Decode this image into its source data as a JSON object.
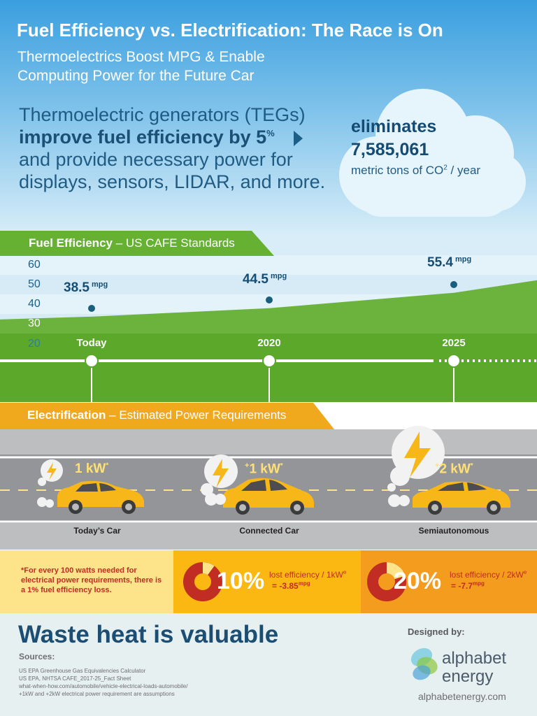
{
  "header": {
    "title": "Fuel Efficiency vs. Electrification: The Race is On",
    "subtitle_line1": "Thermoelectrics Boost MPG & Enable",
    "subtitle_line2": "Computing Power for the Future Car"
  },
  "intro": {
    "line1": "Thermoelectric generators (TEGs)",
    "line2_bold": "improve fuel efficiency by 5",
    "line2_sup": "%",
    "line3": "and provide necessary power for",
    "line4": "displays, sensors, LIDAR, and more."
  },
  "cloud": {
    "label": "eliminates",
    "value": "7,585,061",
    "unit_prefix": "metric tons of CO",
    "unit_sup": "2",
    "unit_suffix": " / year"
  },
  "fuel_section": {
    "banner_bold": "Fuel Efficiency",
    "banner_rest": " –  US CAFE Standards"
  },
  "chart_data": {
    "type": "line",
    "title": "Fuel Efficiency – US CAFE Standards",
    "categories": [
      "Today",
      "2020",
      "2025"
    ],
    "series": [
      {
        "values": [
          38.5,
          44.5,
          55.4
        ]
      }
    ],
    "point_labels": [
      "38.5",
      "44.5",
      "55.4"
    ],
    "unit": "mpg",
    "yticks": [
      "60",
      "50",
      "40",
      "30",
      "20"
    ],
    "ylim": [
      20,
      60
    ]
  },
  "electrification": {
    "banner_bold": "Electrification",
    "banner_rest": " – Estimated Power Requirements",
    "cars": [
      {
        "power": "1 kW",
        "power_sup": "*",
        "power_prefix": "",
        "label": "Today’s Car"
      },
      {
        "power": "1 kW",
        "power_sup": "*",
        "power_prefix": "+",
        "label": "Connected Car"
      },
      {
        "power": "2 kW",
        "power_sup": "*",
        "power_prefix": "+",
        "label": "Semiautonomous"
      }
    ],
    "note": "*For every 100 watts needed for electrical power requirements, there is a 1% fuel efficiency loss.",
    "losses": [
      {
        "pct": "10%",
        "label": "lost efficiency / 1kW",
        "label_sup": "e",
        "value": "= -3.85",
        "value_sup": "mpg"
      },
      {
        "pct": "20%",
        "label": "lost efficiency / 2kW",
        "label_sup": "e",
        "value": "= -7.7",
        "value_sup": "mpg"
      }
    ]
  },
  "footer": {
    "headline": "Waste heat is valuable",
    "sources_heading": "Sources:",
    "sources": [
      "US EPA Greenhouse Gas Equivalencies Calculator",
      "US EPA, NHTSA CAFE_2017-25_Fact Sheet",
      "what-when-how.com/automobile/vehicle-electrical-loads-automobile/",
      "+1kW and +2kW electrical power requirement are assumptions"
    ],
    "designed_by": "Designed by:",
    "brand_line1": "alphabet",
    "brand_line2": "energy",
    "url": "alphabetenergy.com"
  }
}
